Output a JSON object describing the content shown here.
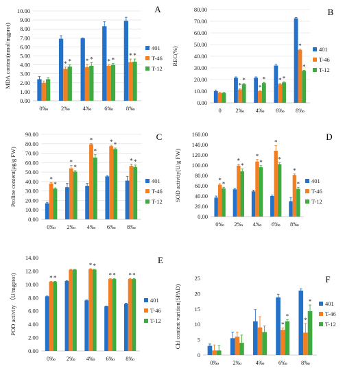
{
  "colors": {
    "s401": "#2471C9",
    "T46": "#F27F21",
    "T12": "#3FAA3F",
    "grid": "#d9d9d9",
    "axis": "#bfbfbf"
  },
  "chart_data": [
    {
      "letter": "A",
      "type": "bar",
      "ylabel": "MDA content(nmol/mgprot)",
      "ylim": [
        0,
        10
      ],
      "yticks": [
        "0.00",
        "1.00",
        "2.00",
        "3.00",
        "4.00",
        "5.00",
        "6.00",
        "7.00",
        "8.00",
        "9.00",
        "10.00"
      ],
      "categories": [
        "0‰",
        "2‰",
        "4‰",
        "6‰",
        "8‰"
      ],
      "legend_position": "right",
      "series": [
        {
          "name": "401",
          "values": [
            2.4,
            6.9,
            6.95,
            8.3,
            8.9
          ],
          "err": [
            0.3,
            0.35,
            0.05,
            0.5,
            0.4
          ],
          "star": [
            false,
            false,
            false,
            false,
            false
          ]
        },
        {
          "name": "T-46",
          "values": [
            2.0,
            3.55,
            3.75,
            3.9,
            4.3
          ],
          "err": [
            0.2,
            0.2,
            0.3,
            0.1,
            0.35
          ],
          "star": [
            false,
            true,
            true,
            true,
            true
          ]
        },
        {
          "name": "T-12",
          "values": [
            2.4,
            3.8,
            3.9,
            4.0,
            4.35
          ],
          "err": [
            0.15,
            0.2,
            0.35,
            0.15,
            0.3
          ],
          "star": [
            false,
            true,
            true,
            true,
            true
          ]
        }
      ]
    },
    {
      "letter": "B",
      "type": "bar",
      "ylabel": "REC(%)",
      "ylim": [
        0,
        80
      ],
      "yticks": [
        "0.00",
        "10.00",
        "20.00",
        "30.00",
        "40.00",
        "50.00",
        "60.00",
        "70.00",
        "80.00"
      ],
      "categories": [
        "0",
        "2‰",
        "4‰",
        "6‰",
        "8‰"
      ],
      "legend_position": "right",
      "series": [
        {
          "name": "401",
          "values": [
            10.0,
            21.5,
            21.5,
            32.0,
            72.5
          ],
          "err": [
            1.0,
            0.8,
            0.8,
            1.0,
            0.8
          ],
          "star": [
            false,
            false,
            false,
            false,
            false
          ]
        },
        {
          "name": "T-46",
          "values": [
            8.5,
            11.5,
            10.0,
            16.0,
            45.5
          ],
          "err": [
            0.5,
            0.5,
            0.4,
            0.6,
            0.5
          ],
          "star": [
            false,
            true,
            true,
            true,
            true
          ]
        },
        {
          "name": "T-12",
          "values": [
            8.5,
            16.0,
            17.0,
            17.5,
            27.5
          ],
          "err": [
            0.4,
            0.5,
            0.5,
            0.5,
            0.5
          ],
          "star": [
            false,
            true,
            true,
            true,
            true
          ]
        }
      ]
    },
    {
      "letter": "C",
      "type": "bar",
      "ylabel": "Proline content(μg/g FW)",
      "ylim": [
        0,
        90
      ],
      "yticks": [
        "0.00",
        "10.00",
        "20.00",
        "30.00",
        "40.00",
        "50.00",
        "60.00",
        "70.00",
        "80.00",
        "90.00"
      ],
      "categories": [
        "0‰",
        "2‰",
        "4‰",
        "6‰",
        "8‰"
      ],
      "legend_position": "right",
      "series": [
        {
          "name": "401",
          "values": [
            17.0,
            34.0,
            35.5,
            45.5,
            41.0
          ],
          "err": [
            1.0,
            4.0,
            2.5,
            0.7,
            4.5
          ],
          "star": [
            false,
            false,
            false,
            false,
            false
          ]
        },
        {
          "name": "T-46",
          "values": [
            38.0,
            54.0,
            79.5,
            77.5,
            56.5
          ],
          "err": [
            0.8,
            3.0,
            0.8,
            1.0,
            2.0
          ],
          "star": [
            true,
            true,
            true,
            true,
            true
          ]
        },
        {
          "name": "T-12",
          "values": [
            32.5,
            50.5,
            65.5,
            74.5,
            55.5
          ],
          "err": [
            0.8,
            1.0,
            3.0,
            1.0,
            2.0
          ],
          "star": [
            true,
            true,
            true,
            true,
            true
          ]
        }
      ]
    },
    {
      "letter": "D",
      "type": "bar",
      "ylabel": "SOD activity(U/g FW)",
      "ylim": [
        0,
        160
      ],
      "yticks": [
        "0.00",
        "20.00",
        "40.00",
        "60.00",
        "80.00",
        "100.00",
        "120.00",
        "140.00",
        "160.00"
      ],
      "categories": [
        "0‰",
        "2‰",
        "4‰",
        "6‰",
        "8‰"
      ],
      "legend_position": "right",
      "series": [
        {
          "name": "401",
          "values": [
            37.0,
            53.0,
            49.0,
            40.0,
            30.0
          ],
          "err": [
            3.0,
            2.0,
            2.5,
            2.0,
            7.0
          ],
          "star": [
            false,
            false,
            false,
            false,
            false
          ]
        },
        {
          "name": "T-46",
          "values": [
            62.0,
            99.0,
            107.0,
            128.0,
            81.0
          ],
          "err": [
            2.0,
            3.0,
            4.0,
            10.0,
            2.0
          ],
          "star": [
            true,
            true,
            true,
            true,
            true
          ]
        },
        {
          "name": "T-12",
          "values": [
            55.0,
            88.0,
            96.0,
            102.0,
            54.0
          ],
          "err": [
            2.0,
            5.0,
            3.0,
            3.0,
            3.0
          ],
          "star": [
            true,
            true,
            true,
            true,
            true
          ]
        }
      ]
    },
    {
      "letter": "E",
      "type": "bar",
      "ylabel": "POD activity （U/mgprot)",
      "ylim": [
        0,
        14
      ],
      "yticks": [
        "0.00",
        "2.00",
        "4.00",
        "6.00",
        "8.00",
        "10.00",
        "12.00",
        "14.00"
      ],
      "categories": [
        "0‰",
        "2‰",
        "4‰",
        "6‰",
        "8‰"
      ],
      "legend_position": "right",
      "series": [
        {
          "name": "401",
          "values": [
            8.2,
            10.5,
            7.6,
            6.7,
            7.1
          ],
          "err": [
            0.05,
            0.05,
            0.05,
            0.05,
            0.05
          ],
          "star": [
            false,
            false,
            false,
            false,
            false
          ]
        },
        {
          "name": "T-46",
          "values": [
            10.4,
            12.2,
            12.3,
            10.8,
            10.8
          ],
          "err": [
            0.05,
            0.05,
            0.05,
            0.05,
            0.05
          ],
          "star": [
            true,
            false,
            true,
            true,
            true
          ]
        },
        {
          "name": "T-12",
          "values": [
            10.4,
            12.2,
            12.2,
            10.8,
            10.8
          ],
          "err": [
            0.05,
            0.05,
            0.05,
            0.05,
            0.05
          ],
          "star": [
            true,
            false,
            true,
            true,
            true
          ]
        }
      ]
    },
    {
      "letter": "F",
      "type": "bar",
      "ylabel": "Chl content varition(SPAD)",
      "ylim": [
        0,
        25
      ],
      "yticks": [
        "0",
        "5",
        "10",
        "15",
        "20",
        "25"
      ],
      "categories": [
        "0‰",
        "2‰",
        "4‰",
        "6‰",
        "8‰"
      ],
      "legend_position": "right",
      "series": [
        {
          "name": "401",
          "values": [
            3.0,
            5.5,
            11.0,
            18.8,
            21.0
          ],
          "err": [
            0.6,
            2.0,
            3.8,
            1.0,
            0.6
          ],
          "star": [
            false,
            false,
            false,
            false,
            false
          ]
        },
        {
          "name": "T-46",
          "values": [
            1.5,
            6.0,
            9.0,
            8.2,
            7.3
          ],
          "err": [
            1.8,
            1.5,
            3.5,
            0.6,
            3.0
          ],
          "star": [
            false,
            false,
            false,
            true,
            true
          ]
        },
        {
          "name": "T-12",
          "values": [
            1.5,
            4.0,
            7.5,
            11.0,
            14.3
          ],
          "err": [
            1.5,
            2.5,
            2.0,
            0.5,
            2.0
          ],
          "star": [
            false,
            false,
            false,
            true,
            true
          ]
        }
      ]
    }
  ]
}
